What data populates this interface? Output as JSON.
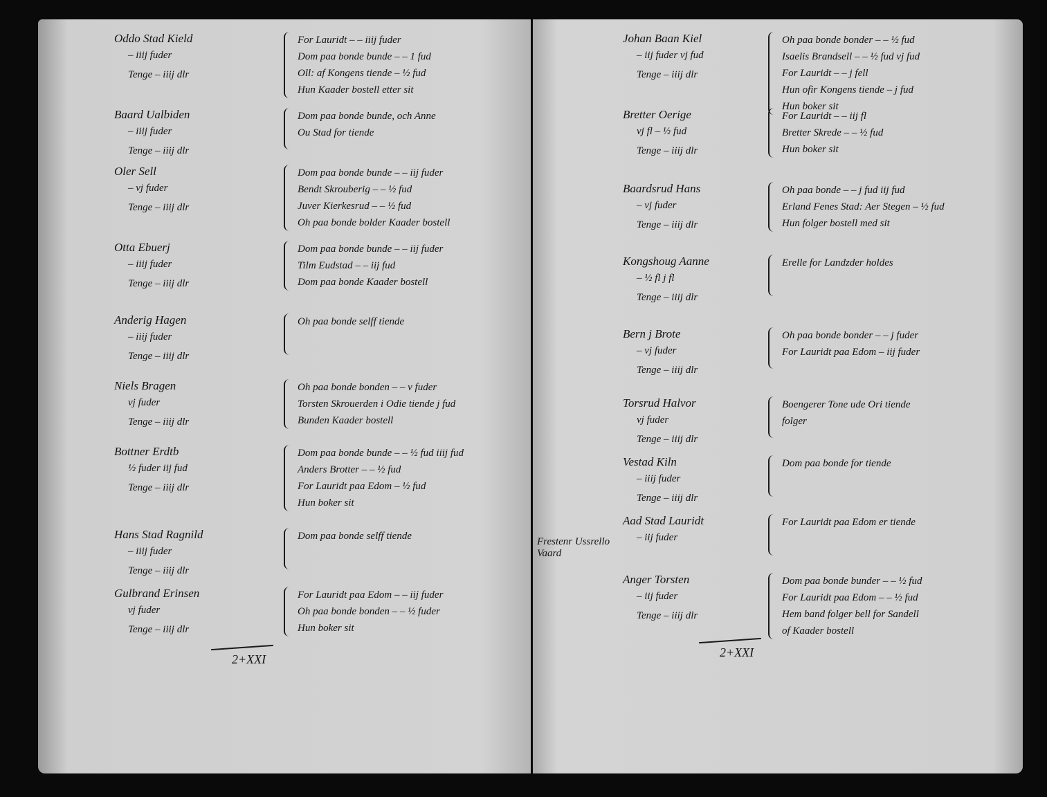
{
  "left_page": {
    "entries": [
      {
        "name": "Oddo Stad Kield",
        "lines": [
          "– iiij fuder",
          "Tenge – iiij dlr"
        ],
        "notes": [
          "For Lauridt – – iiij fuder",
          "Dom paa bonde bunde – – 1 fud",
          "Oll: af Kongens tiende – ½ fud",
          "Hun Kaader bostell etter sit"
        ]
      },
      {
        "name": "Baard Ualbiden",
        "lines": [
          "– iiij fuder",
          "Tenge – iiij dlr"
        ],
        "notes": [
          "Dom paa bonde bunde, och Anne",
          "Ou Stad for tiende"
        ]
      },
      {
        "name": "Oler Sell",
        "lines": [
          "– vj fuder",
          "Tenge – iiij dlr"
        ],
        "notes": [
          "Dom paa bonde bunde – – iij fuder",
          "Bendt Skrouberig – – ½ fud",
          "Juver Kierkesrud – – ½ fud",
          "Oh paa bonde bolder Kaader bostell"
        ]
      },
      {
        "name": "Otta Ebuerj",
        "lines": [
          "– iiij fuder",
          "Tenge – iiij dlr"
        ],
        "notes": [
          "Dom paa bonde bunde – – iij fuder",
          "Tilm Eudstad – – iij fud",
          "Dom paa bonde Kaader bostell"
        ]
      },
      {
        "name": "Anderig Hagen",
        "lines": [
          "– iiij fuder",
          "Tenge – iiij dlr"
        ],
        "notes": [
          "Oh paa bonde selff tiende"
        ]
      },
      {
        "name": "Niels Bragen",
        "lines": [
          "vj fuder",
          "Tenge – iiij dlr"
        ],
        "notes": [
          "Oh paa bonde bonden – – v fuder",
          "Torsten Skrouerden i Odie tiende j fud",
          "Bunden Kaader bostell"
        ]
      },
      {
        "name": "Bottner Erdtb",
        "lines": [
          "½ fuder iij fud",
          "Tenge – iiij dlr"
        ],
        "notes": [
          "Dom paa bonde bunde – – ½ fud iiij fud",
          "Anders Brotter – – ½ fud",
          "For Lauridt paa Edom – ½ fud",
          "Hun boker sit"
        ]
      },
      {
        "name": "Hans Stad Ragnild",
        "lines": [
          "– iiij fuder",
          "Tenge – iiij dlr"
        ],
        "notes": [
          "Dom paa bonde selff tiende"
        ]
      },
      {
        "name": "Gulbrand Erinsen",
        "lines": [
          "vj fuder",
          "Tenge – iiij dlr"
        ],
        "notes": [
          "For Lauridt paa Edom – – iij fuder",
          "Oh paa bonde bonden – – ½ fuder",
          "Hun boker sit"
        ]
      }
    ],
    "footer": "2+XXI"
  },
  "right_page": {
    "entries": [
      {
        "name": "Johan Baan Kiel",
        "lines": [
          "– iij fuder vj fud",
          "Tenge – iiij dlr"
        ],
        "notes": [
          "Oh paa bonde bonder – – ½ fud",
          "Isaelis Brandsell – – ½ fud vj fud",
          "For Lauridt – – j fell",
          "Hun ofir Kongens tiende – j fud",
          "Hun boker sit"
        ]
      },
      {
        "name": "Bretter Oerige",
        "lines": [
          "vj fl – ½ fud",
          "Tenge – iiij dlr"
        ],
        "notes": [
          "For Lauridt – – iij fl",
          "Bretter Skrede – – ½ fud",
          "Hun boker sit"
        ]
      },
      {
        "name": "Baardsrud Hans",
        "lines": [
          "– vj fuder",
          "Tenge – iiij dlr"
        ],
        "notes": [
          "Oh paa bonde – – j fud iij fud",
          "Erland Fenes Stad: Aer Stegen – ½ fud",
          "Hun folger bostell med sit"
        ]
      },
      {
        "name": "Kongshoug Aanne",
        "lines": [
          "– ½ fl j fl",
          "Tenge – iiij dlr"
        ],
        "notes": [
          "Erelle for Landzder holdes"
        ]
      },
      {
        "name": "Bern j Brote",
        "lines": [
          "– vj fuder",
          "Tenge – iiij dlr"
        ],
        "notes": [
          "Oh paa bonde bonder – – j fuder",
          "For Lauridt paa Edom – iij fuder"
        ]
      },
      {
        "name": "Torsrud Halvor",
        "lines": [
          "vj fuder",
          "Tenge – iiij dlr"
        ],
        "notes": [
          "Boengerer Tone ude Ori tiende",
          "folger"
        ]
      },
      {
        "name": "Vestad Kiln",
        "lines": [
          "– iiij fuder",
          "Tenge – iiij dlr"
        ],
        "notes": [
          "Dom paa bonde for tiende"
        ]
      },
      {
        "name": "Aad Stad Lauridt",
        "lines": [
          "– iij fuder"
        ],
        "notes": [
          "For Lauridt paa Edom er tiende"
        ]
      },
      {
        "name": "Anger Torsten",
        "lines": [
          "– iij fuder",
          "Tenge – iiij dlr"
        ],
        "notes": [
          "Dom paa bonde bunder – – ½ fud",
          "For Lauridt paa Edom – – ½ fud",
          "Hem band folger bell for Sandell",
          "of Kaader bostell"
        ]
      }
    ],
    "margin_note": "Frestenr Ussrello Vaard",
    "footer": "2+XXI"
  }
}
